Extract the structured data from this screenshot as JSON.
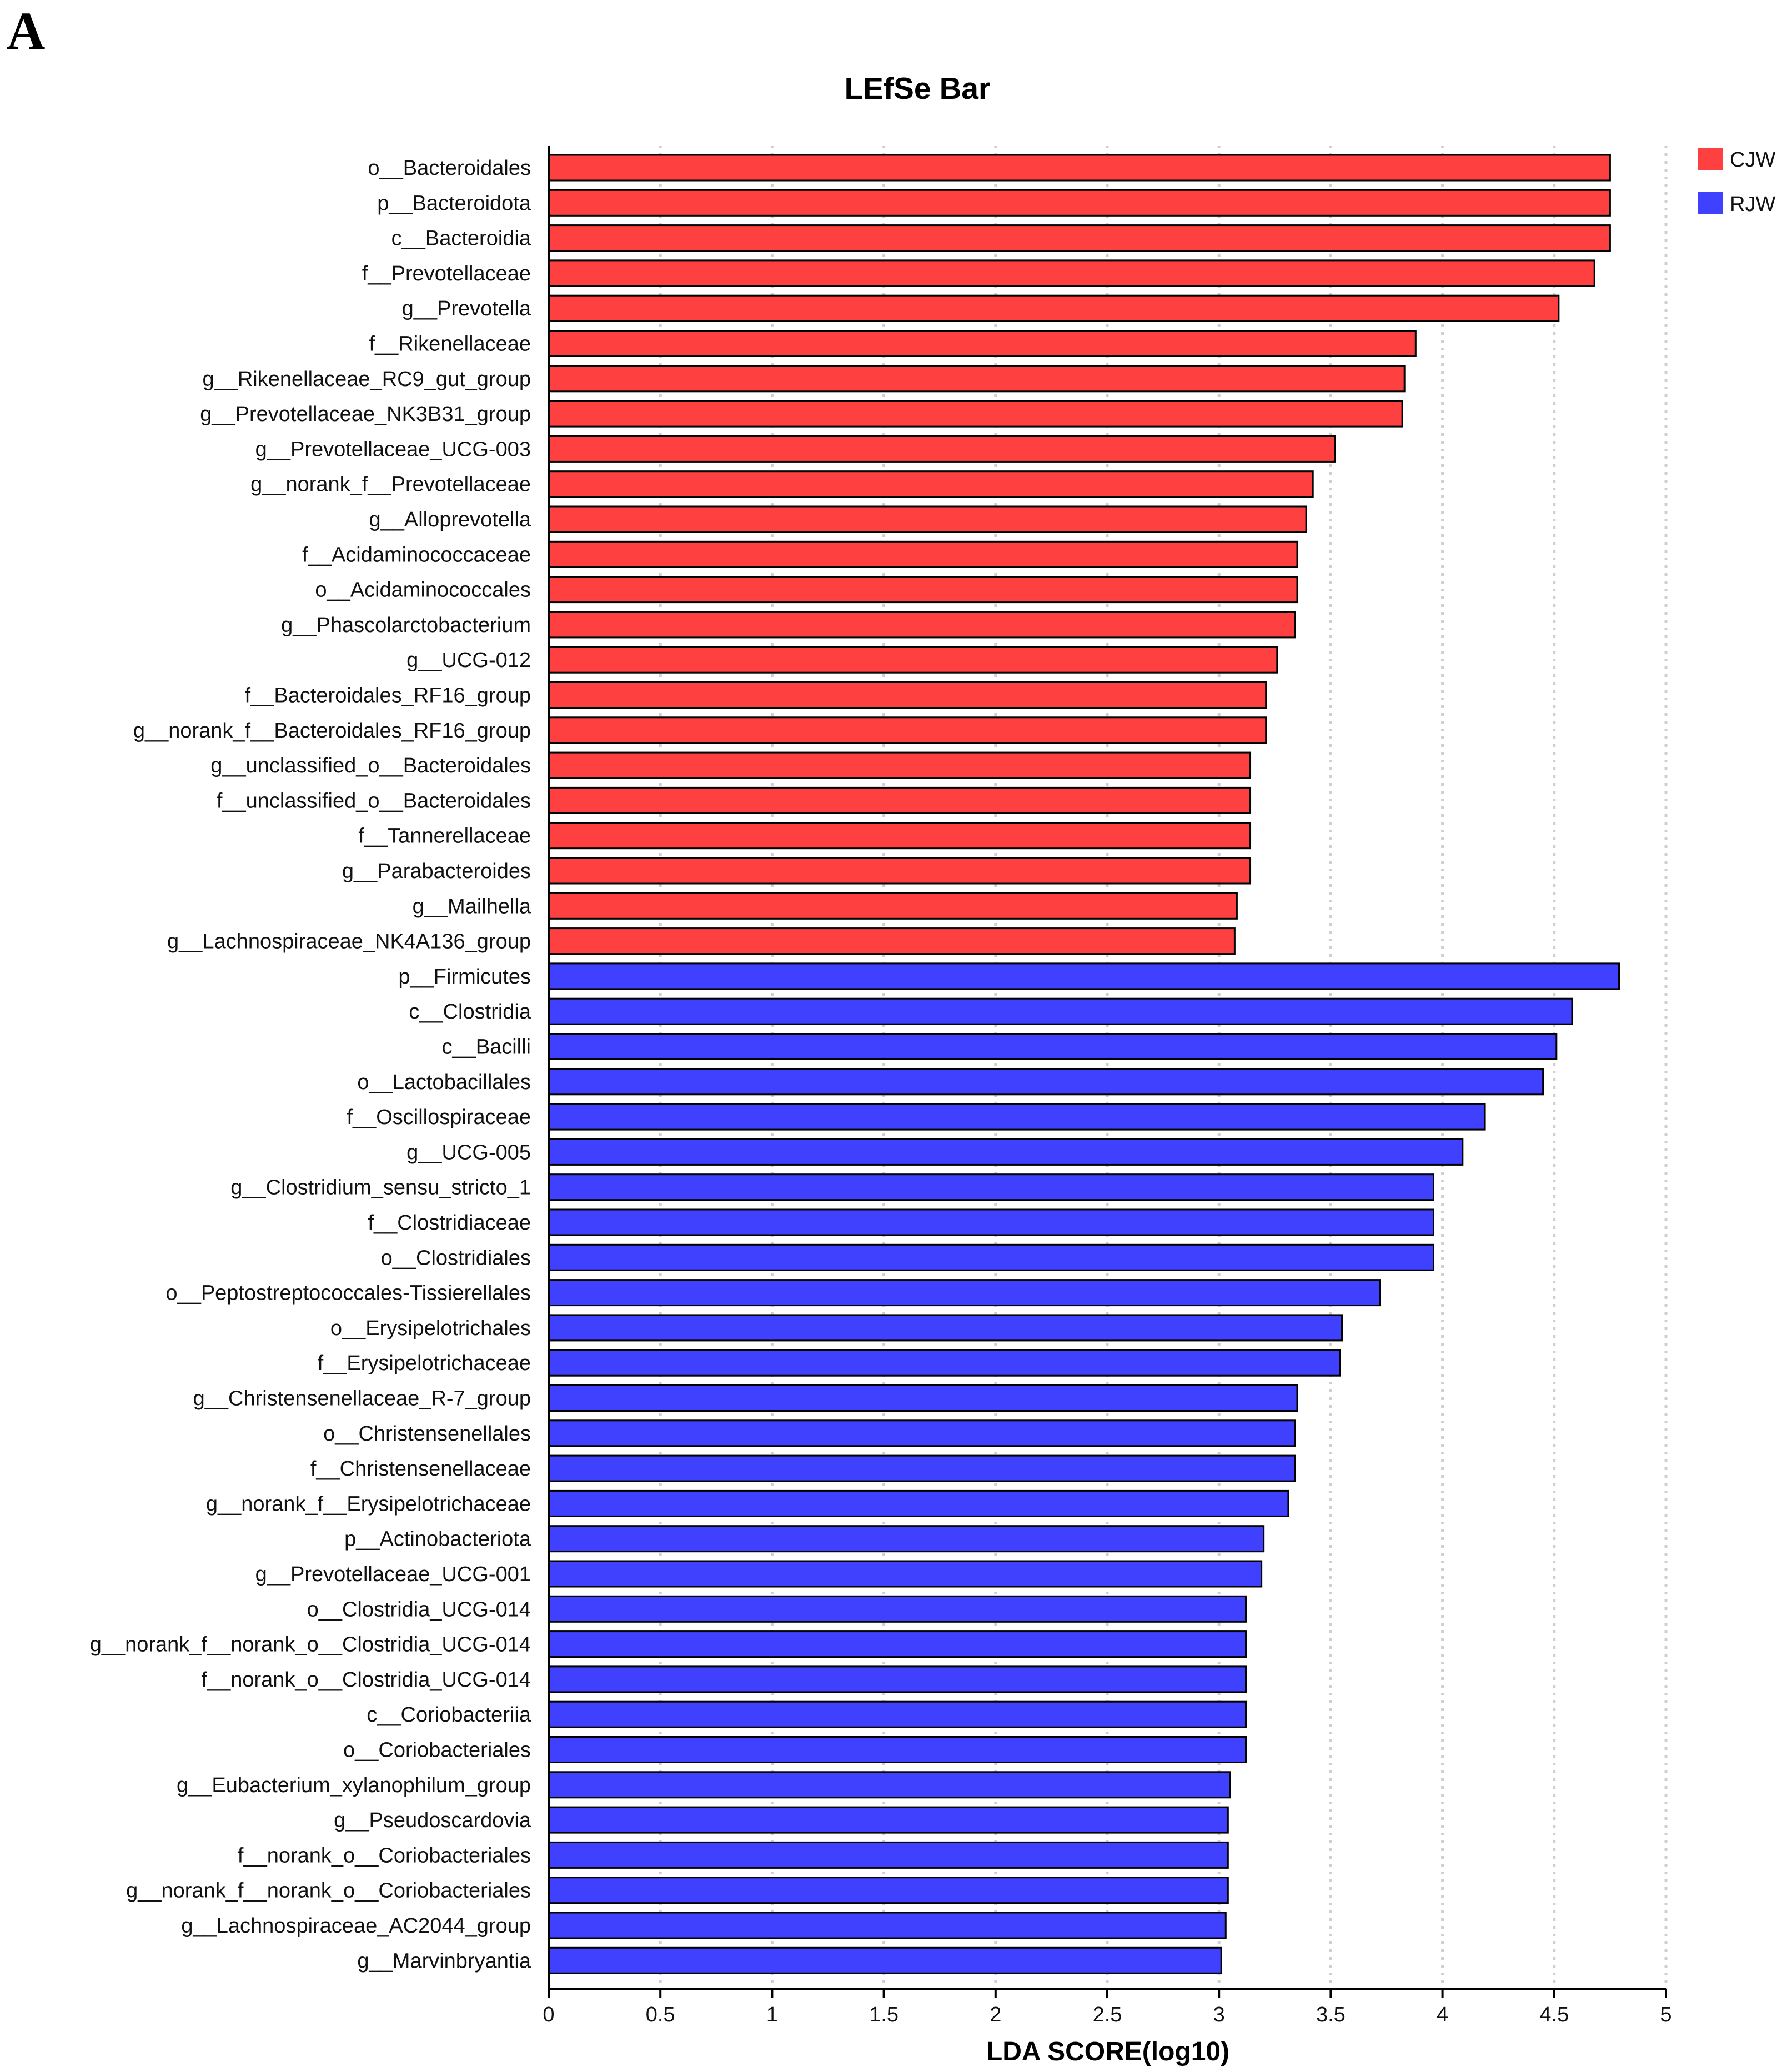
{
  "panel_label": "A",
  "chart_data": {
    "type": "bar",
    "orientation": "horizontal",
    "title": "LEfSe Bar",
    "xlabel": "LDA SCORE(log10)",
    "ylabel": "",
    "xlim": [
      0,
      5
    ],
    "xticks": [
      0,
      0.5,
      1,
      1.5,
      2,
      2.5,
      3,
      3.5,
      4,
      4.5,
      5
    ],
    "grid": "vertical dotted",
    "legend_position": "top-right",
    "groups": [
      {
        "name": "CJW",
        "color": "#FF4040"
      },
      {
        "name": "RJW",
        "color": "#4040FF"
      }
    ],
    "categories": [
      "o__Bacteroidales",
      "p__Bacteroidota",
      "c__Bacteroidia",
      "f__Prevotellaceae",
      "g__Prevotella",
      "f__Rikenellaceae",
      "g__Rikenellaceae_RC9_gut_group",
      "g__Prevotellaceae_NK3B31_group",
      "g__Prevotellaceae_UCG-003",
      "g__norank_f__Prevotellaceae",
      "g__Alloprevotella",
      "f__Acidaminococcaceae",
      "o__Acidaminococcales",
      "g__Phascolarctobacterium",
      "g__UCG-012",
      "f__Bacteroidales_RF16_group",
      "g__norank_f__Bacteroidales_RF16_group",
      "g__unclassified_o__Bacteroidales",
      "f__unclassified_o__Bacteroidales",
      "f__Tannerellaceae",
      "g__Parabacteroides",
      "g__Mailhella",
      "g__Lachnospiraceae_NK4A136_group",
      "p__Firmicutes",
      "c__Clostridia",
      "c__Bacilli",
      "o__Lactobacillales",
      "f__Oscillospiraceae",
      "g__UCG-005",
      "g__Clostridium_sensu_stricto_1",
      "f__Clostridiaceae",
      "o__Clostridiales",
      "o__Peptostreptococcales-Tissierellales",
      "o__Erysipelotrichales",
      "f__Erysipelotrichaceae",
      "g__Christensenellaceae_R-7_group",
      "o__Christensenellales",
      "f__Christensenellaceae",
      "g__norank_f__Erysipelotrichaceae",
      "p__Actinobacteriota",
      "g__Prevotellaceae_UCG-001",
      "o__Clostridia_UCG-014",
      "g__norank_f__norank_o__Clostridia_UCG-014",
      "f__norank_o__Clostridia_UCG-014",
      "c__Coriobacteriia",
      "o__Coriobacteriales",
      "g__Eubacterium_xylanophilum_group",
      "g__Pseudoscardovia",
      "f__norank_o__Coriobacteriales",
      "g__norank_f__norank_o__Coriobacteriales",
      "g__Lachnospiraceae_AC2044_group",
      "g__Marvinbryantia"
    ],
    "values": [
      4.75,
      4.75,
      4.75,
      4.68,
      4.52,
      3.88,
      3.83,
      3.82,
      3.52,
      3.42,
      3.39,
      3.35,
      3.35,
      3.34,
      3.26,
      3.21,
      3.21,
      3.14,
      3.14,
      3.14,
      3.14,
      3.08,
      3.07,
      4.79,
      4.58,
      4.51,
      4.45,
      4.19,
      4.09,
      3.96,
      3.96,
      3.96,
      3.72,
      3.55,
      3.54,
      3.35,
      3.34,
      3.34,
      3.31,
      3.2,
      3.19,
      3.12,
      3.12,
      3.12,
      3.12,
      3.12,
      3.05,
      3.04,
      3.04,
      3.04,
      3.03,
      3.01
    ],
    "group_assignment": [
      "CJW",
      "CJW",
      "CJW",
      "CJW",
      "CJW",
      "CJW",
      "CJW",
      "CJW",
      "CJW",
      "CJW",
      "CJW",
      "CJW",
      "CJW",
      "CJW",
      "CJW",
      "CJW",
      "CJW",
      "CJW",
      "CJW",
      "CJW",
      "CJW",
      "CJW",
      "CJW",
      "RJW",
      "RJW",
      "RJW",
      "RJW",
      "RJW",
      "RJW",
      "RJW",
      "RJW",
      "RJW",
      "RJW",
      "RJW",
      "RJW",
      "RJW",
      "RJW",
      "RJW",
      "RJW",
      "RJW",
      "RJW",
      "RJW",
      "RJW",
      "RJW",
      "RJW",
      "RJW",
      "RJW",
      "RJW",
      "RJW",
      "RJW",
      "RJW",
      "RJW"
    ]
  }
}
